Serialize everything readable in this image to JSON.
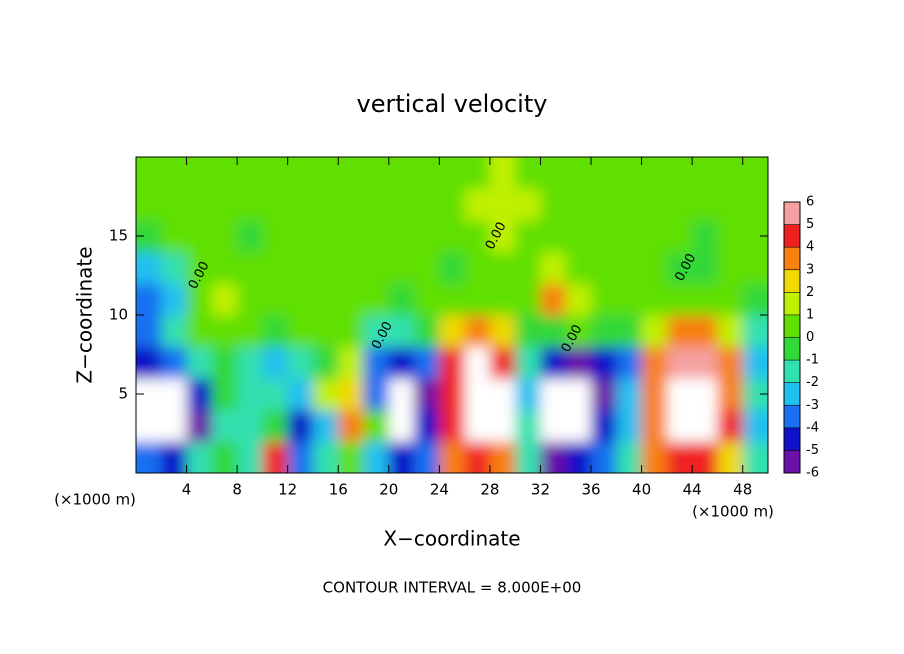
{
  "chart_data": {
    "type": "heatmap",
    "title": "vertical velocity",
    "x_label": "X−coordinate",
    "y_label": "Z−coordinate",
    "x_unit_left": "(×1000 m)",
    "x_unit_right": "(×1000 m)",
    "footer": "CONTOUR INTERVAL = 8.000E+00",
    "xlim": [
      0,
      50
    ],
    "ylim": [
      0,
      20
    ],
    "xticks": [
      4,
      8,
      12,
      16,
      20,
      24,
      28,
      32,
      36,
      40,
      44,
      48
    ],
    "yticks": [
      5,
      10,
      15
    ],
    "x": [
      1,
      3,
      5,
      7,
      9,
      11,
      13,
      15,
      17,
      19,
      21,
      23,
      25,
      27,
      29,
      31,
      33,
      35,
      37,
      39,
      41,
      43,
      45,
      47,
      49
    ],
    "z": [
      1,
      3,
      5,
      7,
      9,
      11,
      13,
      15,
      17,
      19
    ],
    "values": [
      [
        -3,
        -4,
        -1,
        0,
        -1,
        5,
        -3,
        -1,
        1,
        -2,
        -4,
        -3,
        4,
        5,
        4,
        -1,
        -5,
        -4,
        -3,
        -1,
        4,
        5,
        5,
        3,
        -1
      ],
      [
        -7,
        -7,
        -5,
        -1,
        -1,
        0,
        -4,
        -2,
        3.5,
        0.5,
        -7,
        -4,
        5,
        7,
        7,
        -1,
        -7,
        -7,
        -4,
        -2,
        4,
        7,
        7,
        5,
        -2
      ],
      [
        -7,
        -7,
        -4,
        0,
        -1,
        -1,
        -2,
        2,
        3,
        -3,
        -7,
        -5,
        5,
        7,
        7,
        -2,
        -7,
        -7,
        -5,
        -2,
        4,
        7,
        7,
        4,
        -1
      ],
      [
        -4,
        -3,
        -1,
        0,
        -1.5,
        -2,
        -1,
        0,
        2,
        -3,
        -4,
        -3,
        5,
        7,
        5,
        -1,
        -4,
        -5,
        -4,
        -3,
        4,
        6,
        6,
        4,
        -2
      ],
      [
        -3,
        -1,
        0.5,
        1,
        0.5,
        0,
        0.5,
        0.5,
        0.5,
        -1,
        -1,
        -0.5,
        3,
        4,
        3,
        0,
        0,
        1,
        0,
        0,
        2,
        4,
        4,
        2,
        -1
      ],
      [
        -3,
        -2,
        1,
        1.5,
        1,
        0.5,
        0.5,
        1,
        0.5,
        0.5,
        0,
        0.5,
        1,
        1,
        1,
        1,
        4,
        2,
        0.5,
        0.5,
        0.5,
        0.5,
        0.5,
        0.5,
        0
      ],
      [
        -2,
        -1,
        1,
        1,
        0.5,
        0.5,
        0.5,
        0.5,
        0.5,
        0.5,
        0.5,
        1,
        0,
        0.5,
        1,
        1,
        2,
        1,
        0.5,
        0.5,
        0.5,
        0,
        0,
        0.5,
        0.5
      ],
      [
        0,
        0.5,
        0.5,
        0.5,
        0,
        0.5,
        0.5,
        0.5,
        1,
        1,
        0.5,
        0.5,
        0.5,
        1,
        1.5,
        1,
        1,
        1,
        1,
        1,
        0.5,
        0.5,
        0,
        0.5,
        0.5
      ],
      [
        0.5,
        1,
        0.5,
        0.5,
        0.5,
        1,
        1,
        1,
        1,
        1,
        1,
        0.5,
        1,
        1.5,
        1.5,
        1.5,
        1,
        1,
        1,
        0.5,
        0.5,
        1,
        0.5,
        0.5,
        0.5
      ],
      [
        0.5,
        1,
        1,
        0.5,
        1,
        1,
        1,
        1,
        1,
        1,
        0.5,
        0.5,
        1,
        1,
        1.5,
        1,
        1,
        1,
        1,
        0.5,
        0.5,
        1,
        1,
        0.5,
        0.5
      ]
    ],
    "colorbar": {
      "levels": [
        -6,
        -5,
        -4,
        -3,
        -2,
        -1,
        0,
        1,
        2,
        3,
        4,
        5,
        6
      ],
      "colors": [
        "#6a10a8",
        "#1010c8",
        "#1870f0",
        "#20c0f0",
        "#30e0b0",
        "#30d838",
        "#60e000",
        "#c0f000",
        "#f0d800",
        "#f88010",
        "#f02020",
        "#f4a0a0"
      ]
    },
    "contour_labels": [
      {
        "label": "0.00",
        "x": 5,
        "z": 12.5
      },
      {
        "label": "0.00",
        "x": 19.5,
        "z": 8.7
      },
      {
        "label": "0.00",
        "x": 28.5,
        "z": 15
      },
      {
        "label": "0.00",
        "x": 34.5,
        "z": 8.5
      },
      {
        "label": "0.00",
        "x": 43.5,
        "z": 13
      }
    ]
  }
}
